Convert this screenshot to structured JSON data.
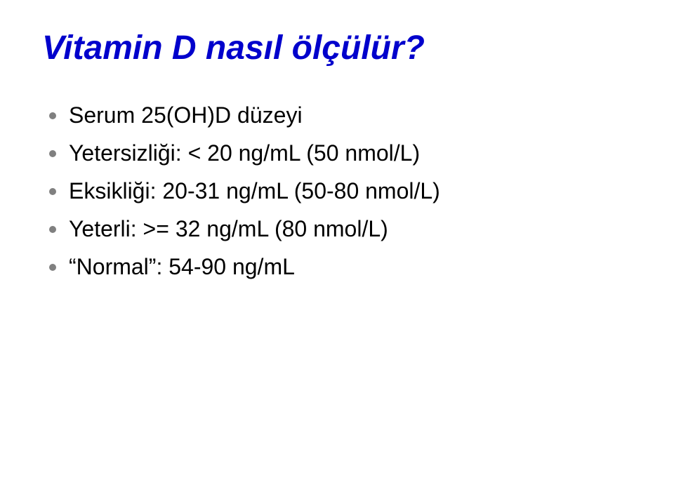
{
  "slide": {
    "title": "Vitamin D nasıl ölçülür?",
    "title_color": "#0000cc",
    "title_fontsize": 48,
    "background_color": "#ffffff",
    "bullet_color": "#808080",
    "text_color": "#000000",
    "text_fontsize": 32,
    "font_family": "Comic Sans MS",
    "bullets": [
      {
        "text": "Serum 25(OH)D düzeyi"
      },
      {
        "text": "Yetersizliği: < 20 ng/mL (50 nmol/L)"
      },
      {
        "text": "Eksikliği: 20-31 ng/mL (50-80 nmol/L)"
      },
      {
        "text": "Yeterli: >= 32 ng/mL (80 nmol/L)"
      },
      {
        "text": "“Normal”: 54-90 ng/mL"
      }
    ]
  }
}
